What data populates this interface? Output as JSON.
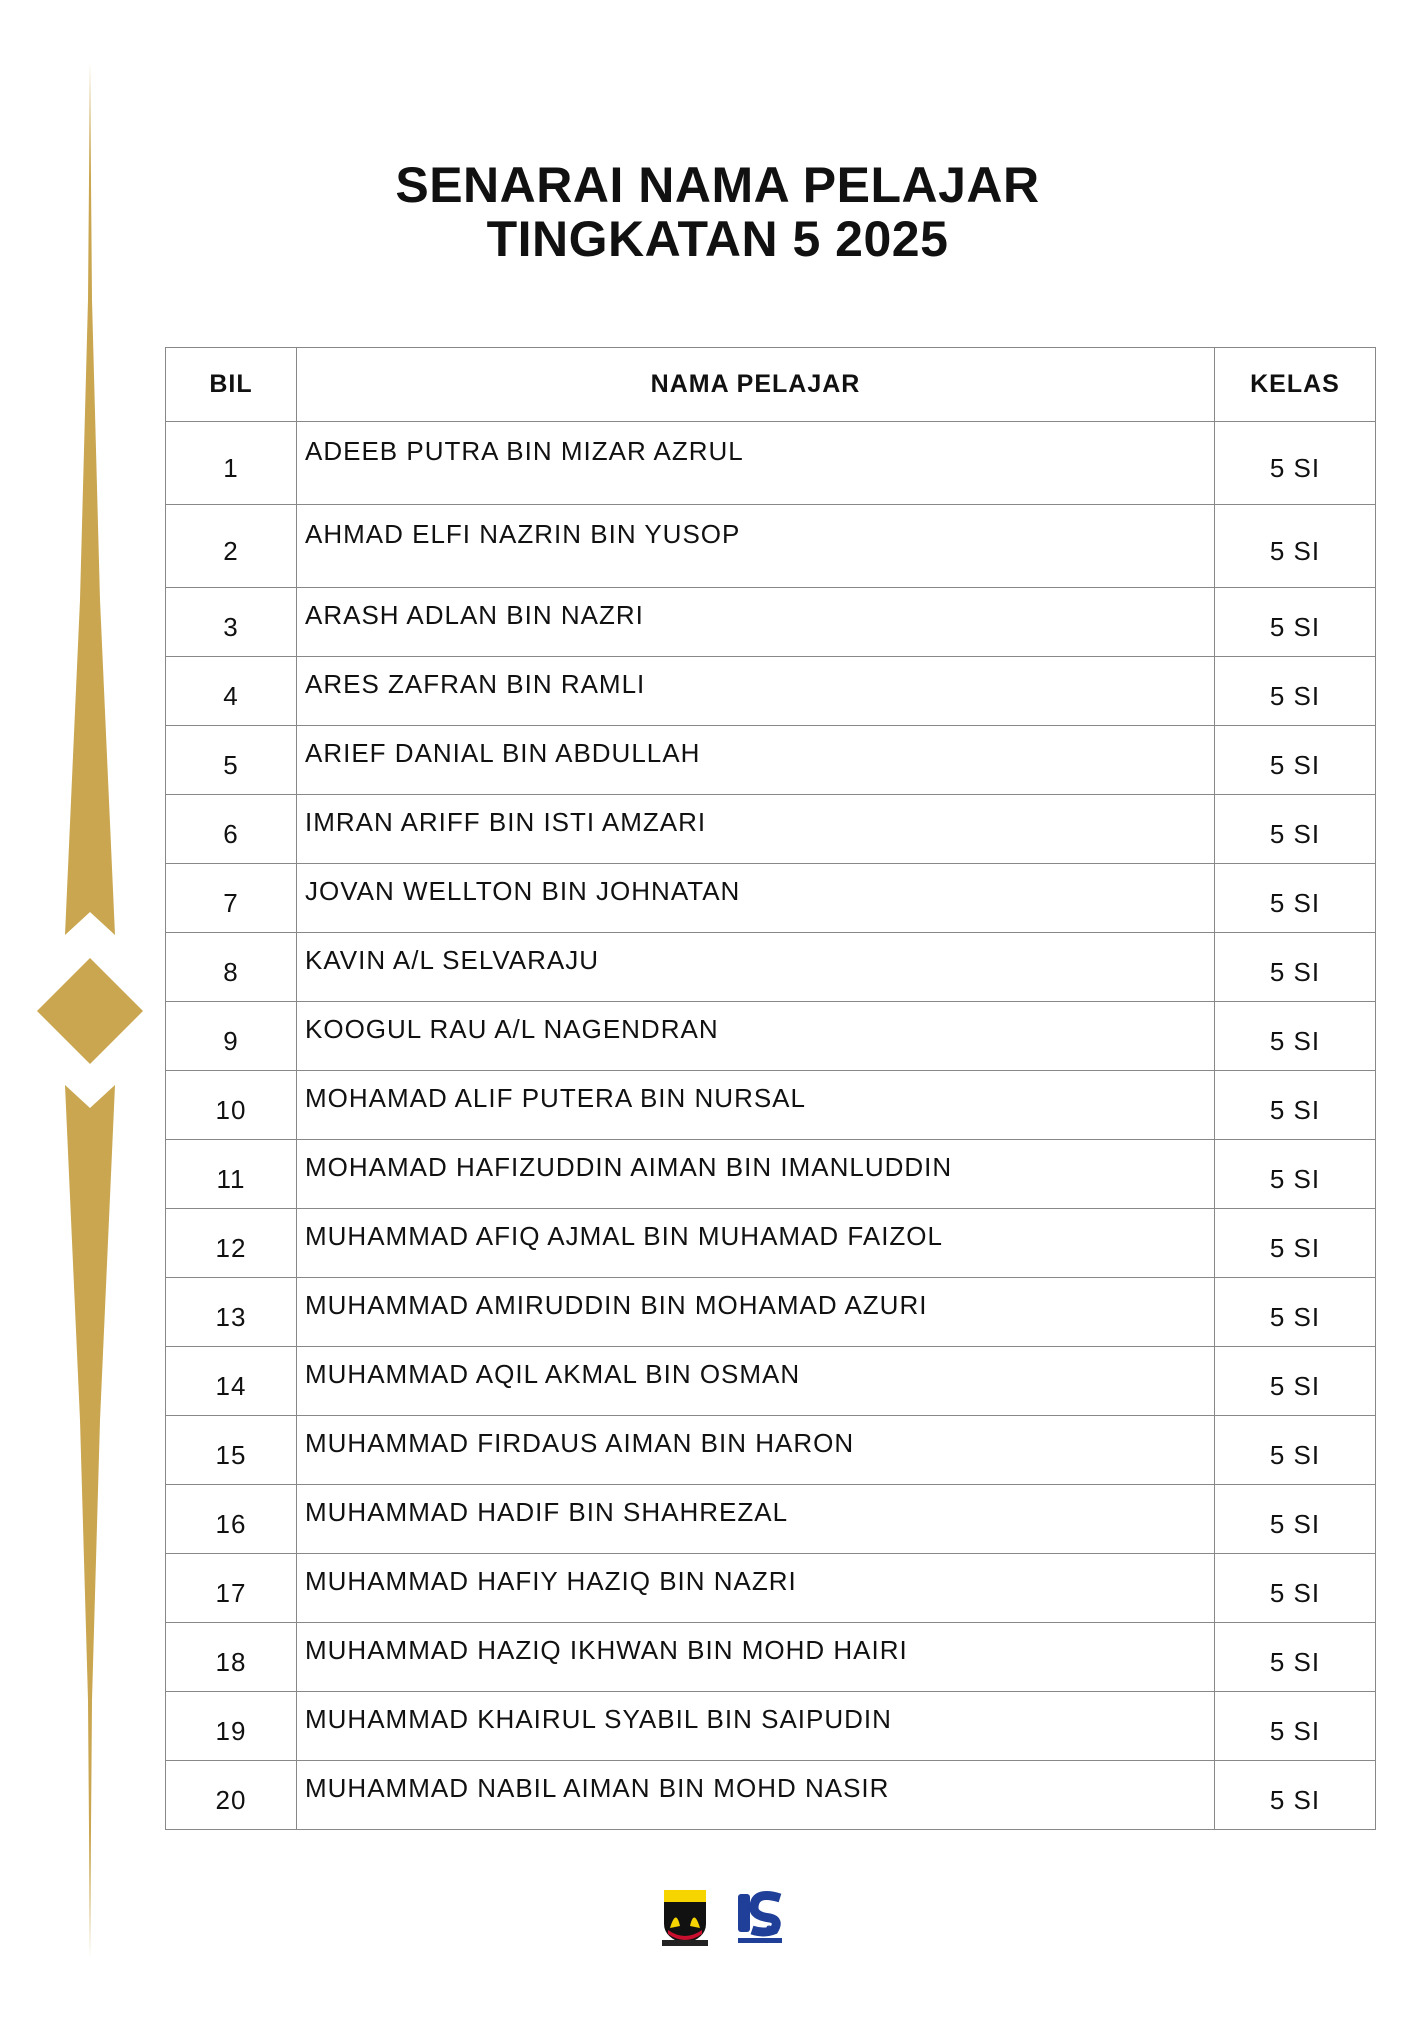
{
  "title": {
    "line1": "SENARAI NAMA PELAJAR",
    "line2": "TINGKATAN 5 2025"
  },
  "colors": {
    "ornament": "#c9a64f"
  },
  "table": {
    "headers": {
      "bil": "BIL",
      "nama": "NAMA PELAJAR",
      "kelas": "KELAS"
    },
    "rows": [
      {
        "bil": "1",
        "nama": "ADEEB PUTRA BIN MIZAR AZRUL",
        "kelas": "5 SI"
      },
      {
        "bil": "2",
        "nama": "AHMAD ELFI NAZRIN BIN YUSOP",
        "kelas": "5 SI"
      },
      {
        "bil": "3",
        "nama": "ARASH ADLAN BIN NAZRI",
        "kelas": "5 SI"
      },
      {
        "bil": "4",
        "nama": "ARES ZAFRAN BIN RAMLI",
        "kelas": "5 SI"
      },
      {
        "bil": "5",
        "nama": "ARIEF DANIAL BIN ABDULLAH",
        "kelas": "5 SI"
      },
      {
        "bil": "6",
        "nama": "IMRAN ARIFF BIN ISTI AMZARI",
        "kelas": "5 SI"
      },
      {
        "bil": "7",
        "nama": "JOVAN WELLTON BIN JOHNATAN",
        "kelas": "5 SI"
      },
      {
        "bil": "8",
        "nama": "KAVIN A/L SELVARAJU",
        "kelas": "5 SI"
      },
      {
        "bil": "9",
        "nama": "KOOGUL RAU A/L NAGENDRAN",
        "kelas": "5 SI"
      },
      {
        "bil": "10",
        "nama": "MOHAMAD ALIF PUTERA BIN NURSAL",
        "kelas": "5 SI"
      },
      {
        "bil": "11",
        "nama": "MOHAMAD HAFIZUDDIN AIMAN BIN IMANLUDDIN",
        "kelas": "5 SI"
      },
      {
        "bil": "12",
        "nama": "MUHAMMAD AFIQ AJMAL BIN MUHAMAD FAIZOL",
        "kelas": "5 SI"
      },
      {
        "bil": "13",
        "nama": "MUHAMMAD AMIRUDDIN BIN MOHAMAD AZURI",
        "kelas": "5 SI"
      },
      {
        "bil": "14",
        "nama": "MUHAMMAD AQIL AKMAL BIN OSMAN",
        "kelas": "5 SI"
      },
      {
        "bil": "15",
        "nama": "MUHAMMAD FIRDAUS AIMAN BIN HARON",
        "kelas": "5 SI"
      },
      {
        "bil": "16",
        "nama": "MUHAMMAD HADIF BIN SHAHREZAL",
        "kelas": "5 SI"
      },
      {
        "bil": "17",
        "nama": "MUHAMMAD HAFIY HAZIQ BIN NAZRI",
        "kelas": "5 SI"
      },
      {
        "bil": "18",
        "nama": "MUHAMMAD HAZIQ IKHWAN BIN MOHD HAIRI",
        "kelas": "5 SI"
      },
      {
        "bil": "19",
        "nama": "MUHAMMAD KHAIRUL SYABIL BIN SAIPUDIN",
        "kelas": "5 SI"
      },
      {
        "bil": "20",
        "nama": "MUHAMMAD NABIL AIMAN BIN MOHD NASIR",
        "kelas": "5 SI"
      }
    ]
  },
  "logos": {
    "school_crest": "school-crest-logo",
    "anniversary": "25-anniversary-logo"
  }
}
